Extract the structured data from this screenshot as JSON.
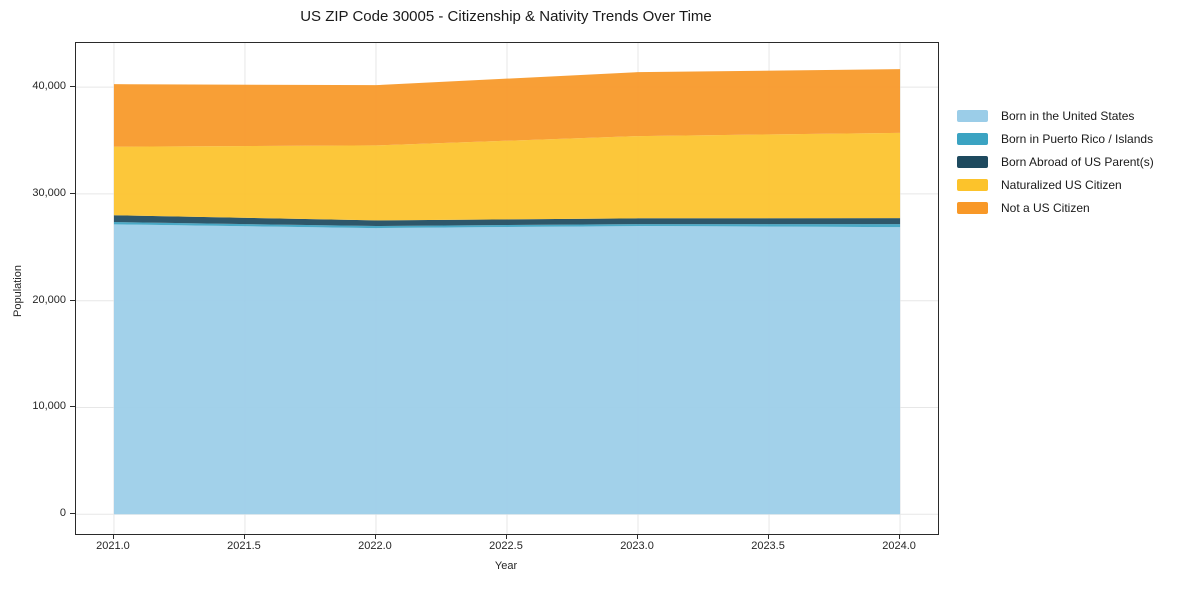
{
  "chart_data": {
    "type": "area",
    "stacked": true,
    "title": "US ZIP Code 30005 - Citizenship & Nativity Trends Over Time",
    "xlabel": "Year",
    "ylabel": "Population",
    "x": [
      2021,
      2022,
      2023,
      2024
    ],
    "series": [
      {
        "name": "Born in the United States",
        "color": "#9bcde8",
        "values": [
          27150,
          26800,
          26990,
          26890
        ]
      },
      {
        "name": "Born in Puerto Rico / Islands",
        "color": "#3ba3c2",
        "values": [
          215,
          190,
          185,
          280
        ]
      },
      {
        "name": "Born Abroad of US Parent(s)",
        "color": "#1e4a5f",
        "values": [
          640,
          530,
          540,
          560
        ]
      },
      {
        "name": "Naturalized US Citizen",
        "color": "#fcc32b",
        "values": [
          6420,
          7020,
          7700,
          7990
        ]
      },
      {
        "name": "Not a US Citizen",
        "color": "#f89827",
        "values": [
          5850,
          5640,
          5990,
          5960
        ]
      }
    ],
    "xticks": {
      "values": [
        2021.0,
        2021.5,
        2022.0,
        2022.5,
        2023.0,
        2023.5,
        2024.0
      ],
      "labels": [
        "2021.0",
        "2021.5",
        "2022.0",
        "2022.5",
        "2023.0",
        "2023.5",
        "2024.0"
      ]
    },
    "yticks": {
      "values": [
        0,
        10000,
        20000,
        30000,
        40000
      ],
      "labels": [
        "0",
        "10,000",
        "20,000",
        "30,000",
        "40,000"
      ]
    },
    "xlim": [
      2020.8552,
      2024.1448
    ],
    "ylim": [
      -1845,
      44130
    ],
    "grid": true,
    "grid_color": "#e7e7e7",
    "legend_position": "right of plot",
    "axis_color": "#2a2a2a"
  }
}
